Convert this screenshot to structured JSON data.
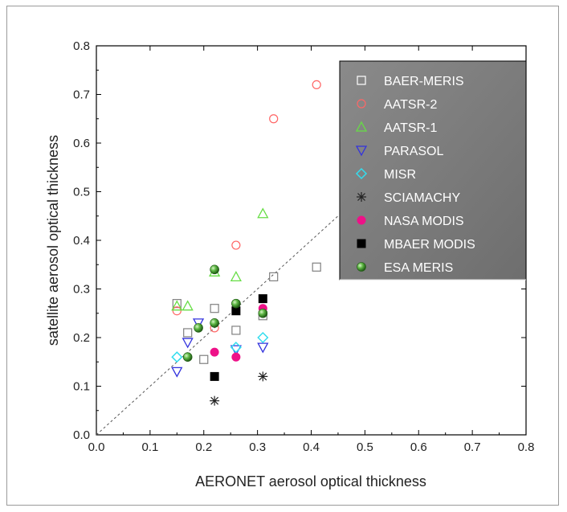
{
  "chart_data": {
    "type": "scatter",
    "xlabel": "AERONET aerosol optical thickness",
    "ylabel": "satellite aerosol optical thickness",
    "xlim": [
      0.0,
      0.8
    ],
    "ylim": [
      0.0,
      0.8
    ],
    "x_ticks": [
      "0.0",
      "0.1",
      "0.2",
      "0.3",
      "0.4",
      "0.5",
      "0.6",
      "0.7",
      "0.8"
    ],
    "y_ticks": [
      "0.0",
      "0.1",
      "0.2",
      "0.3",
      "0.4",
      "0.5",
      "0.6",
      "0.7",
      "0.8"
    ],
    "grid": false,
    "legend_position": "top-right",
    "legend_background": "#808080",
    "reference_line": {
      "style": "dashed",
      "from": [
        0.0,
        0.0
      ],
      "to": [
        0.45,
        0.45
      ],
      "color": "#555555"
    },
    "series": [
      {
        "name": "BAER-MERIS",
        "marker": "square-open",
        "color": "#808080",
        "x": [
          0.15,
          0.17,
          0.2,
          0.22,
          0.26,
          0.31,
          0.33,
          0.41
        ],
        "y": [
          0.27,
          0.21,
          0.155,
          0.26,
          0.215,
          0.245,
          0.325,
          0.345
        ]
      },
      {
        "name": "AATSR-2",
        "marker": "circle-open",
        "color": "#ff6666",
        "x": [
          0.15,
          0.22,
          0.26,
          0.33,
          0.41
        ],
        "y": [
          0.255,
          0.22,
          0.39,
          0.65,
          0.72
        ]
      },
      {
        "name": "AATSR-1",
        "marker": "triangle-up-open",
        "color": "#66dd44",
        "x": [
          0.15,
          0.17,
          0.22,
          0.26,
          0.31
        ],
        "y": [
          0.265,
          0.265,
          0.335,
          0.325,
          0.455
        ]
      },
      {
        "name": "PARASOL",
        "marker": "triangle-down-open",
        "color": "#3333dd",
        "x": [
          0.15,
          0.17,
          0.19,
          0.26,
          0.31
        ],
        "y": [
          0.13,
          0.19,
          0.23,
          0.175,
          0.18
        ]
      },
      {
        "name": "MISR",
        "marker": "diamond-open",
        "color": "#33ddee",
        "x": [
          0.15,
          0.26,
          0.31
        ],
        "y": [
          0.16,
          0.18,
          0.2
        ]
      },
      {
        "name": "SCIAMACHY",
        "marker": "asterisk",
        "color": "#222222",
        "x": [
          0.22,
          0.31
        ],
        "y": [
          0.07,
          0.12
        ]
      },
      {
        "name": "NASA MODIS",
        "marker": "circle-filled",
        "color": "#ee1188",
        "x": [
          0.22,
          0.26,
          0.31
        ],
        "y": [
          0.17,
          0.16,
          0.26
        ]
      },
      {
        "name": "MBAER MODIS",
        "marker": "square-filled",
        "color": "#000000",
        "x": [
          0.22,
          0.26,
          0.31
        ],
        "y": [
          0.12,
          0.255,
          0.28
        ]
      },
      {
        "name": "ESA MERIS",
        "marker": "sphere",
        "color": "#3a9a2a",
        "x": [
          0.17,
          0.19,
          0.22,
          0.22,
          0.26,
          0.31
        ],
        "y": [
          0.16,
          0.22,
          0.23,
          0.34,
          0.27,
          0.25
        ]
      }
    ]
  }
}
